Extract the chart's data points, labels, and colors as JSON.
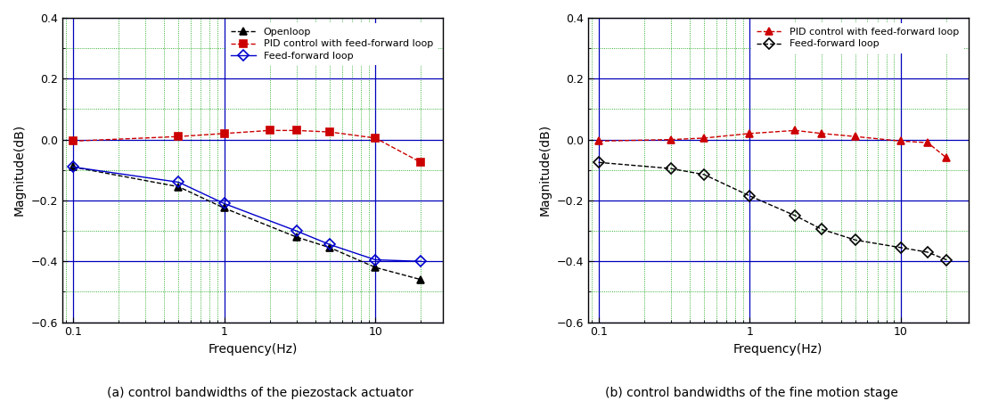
{
  "plot_a": {
    "title": "(a) control bandwidths of the piezostack actuator",
    "xlabel": "Frequency(Hz)",
    "ylabel": "Magnitude(dB)",
    "ylim": [
      -0.6,
      0.4
    ],
    "xlim": [
      0.085,
      28
    ],
    "openloop": {
      "freq": [
        0.1,
        0.5,
        1.0,
        3.0,
        5.0,
        10.0,
        20.0
      ],
      "mag": [
        -0.09,
        -0.155,
        -0.225,
        -0.32,
        -0.355,
        -0.42,
        -0.46
      ],
      "color": "#000000",
      "label": "Openloop",
      "marker": "^",
      "markersize": 6,
      "fillstyle": "full",
      "linestyle": "--"
    },
    "pid_ff": {
      "freq": [
        0.1,
        0.5,
        1.0,
        2.0,
        3.0,
        5.0,
        10.0,
        20.0
      ],
      "mag": [
        -0.005,
        0.01,
        0.02,
        0.03,
        0.03,
        0.025,
        0.005,
        -0.075
      ],
      "color": "#cc0000",
      "label": "PID control with feed-forward loop",
      "marker": "s",
      "markersize": 6,
      "fillstyle": "full",
      "linestyle": "--"
    },
    "ff": {
      "freq": [
        0.1,
        0.5,
        1.0,
        3.0,
        5.0,
        10.0,
        20.0
      ],
      "mag": [
        -0.09,
        -0.14,
        -0.21,
        -0.3,
        -0.345,
        -0.395,
        -0.4
      ],
      "color": "#0000cc",
      "label": "Feed-forward loop",
      "marker": "D",
      "markersize": 6,
      "fillstyle": "none",
      "linestyle": "-"
    }
  },
  "plot_b": {
    "title": "(b) control bandwidths of the fine motion stage",
    "xlabel": "Frequency(Hz)",
    "ylabel": "Magnitude(dB)",
    "ylim": [
      -0.6,
      0.4
    ],
    "xlim": [
      0.085,
      28
    ],
    "pid_ff": {
      "freq": [
        0.1,
        0.3,
        0.5,
        1.0,
        2.0,
        3.0,
        5.0,
        10.0,
        15.0,
        20.0
      ],
      "mag": [
        -0.005,
        0.0,
        0.005,
        0.02,
        0.03,
        0.02,
        0.01,
        -0.005,
        -0.01,
        -0.06
      ],
      "color": "#cc0000",
      "label": "PID control with feed-forward loop",
      "marker": "^",
      "markersize": 6,
      "fillstyle": "full",
      "linestyle": "--"
    },
    "ff": {
      "freq": [
        0.1,
        0.3,
        0.5,
        1.0,
        2.0,
        3.0,
        5.0,
        10.0,
        15.0,
        20.0
      ],
      "mag": [
        -0.075,
        -0.095,
        -0.115,
        -0.185,
        -0.25,
        -0.295,
        -0.33,
        -0.355,
        -0.37,
        -0.395
      ],
      "color": "#000000",
      "label": "Feed-forward loop",
      "marker": "D",
      "markersize": 6,
      "fillstyle": "none",
      "linestyle": "--"
    }
  },
  "grid_major_color": "#0000bb",
  "grid_minor_color": "#009900",
  "yticks": [
    -0.6,
    -0.4,
    -0.2,
    0.0,
    0.2,
    0.4
  ]
}
